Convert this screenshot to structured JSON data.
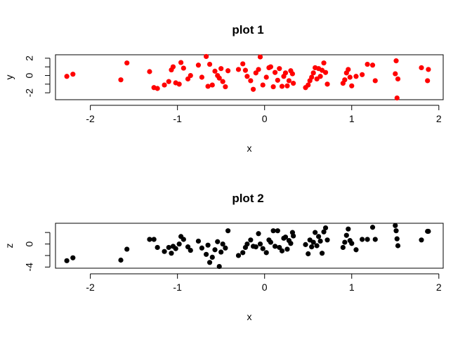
{
  "chart_data": [
    {
      "type": "scatter",
      "title": "plot 1",
      "xlabel": "x",
      "ylabel": "y",
      "xlim": [
        -2.4,
        2.05
      ],
      "ylim": [
        -2.8,
        2.4
      ],
      "xticks": [
        -2,
        -1,
        0,
        1,
        2
      ],
      "xtick_labels": [
        "-2",
        "-1",
        "0",
        "1",
        "2"
      ],
      "yticks": [
        -2,
        0,
        2
      ],
      "ytick_labels": [
        "-2",
        "0",
        "2"
      ],
      "point_color": "#ff0000",
      "points": [
        [
          -2.27,
          -0.1
        ],
        [
          -2.2,
          0.15
        ],
        [
          -1.65,
          -0.5
        ],
        [
          -1.58,
          1.45
        ],
        [
          -1.32,
          0.45
        ],
        [
          -1.27,
          -1.4
        ],
        [
          -1.23,
          -1.5
        ],
        [
          -1.15,
          -1.1
        ],
        [
          -1.1,
          -0.7
        ],
        [
          -1.07,
          0.65
        ],
        [
          -1.05,
          1.0
        ],
        [
          -1.02,
          -0.85
        ],
        [
          -0.98,
          -1.0
        ],
        [
          -0.96,
          1.5
        ],
        [
          -0.93,
          0.85
        ],
        [
          -0.88,
          -0.4
        ],
        [
          -0.85,
          0.0
        ],
        [
          -0.76,
          1.2
        ],
        [
          -0.72,
          -0.2
        ],
        [
          -0.67,
          2.2
        ],
        [
          -0.65,
          -1.25
        ],
        [
          -0.63,
          1.3
        ],
        [
          -0.6,
          -1.1
        ],
        [
          -0.57,
          0.5
        ],
        [
          -0.54,
          0.0
        ],
        [
          -0.52,
          -0.3
        ],
        [
          -0.5,
          0.8
        ],
        [
          -0.48,
          -0.7
        ],
        [
          -0.45,
          -1.3
        ],
        [
          -0.42,
          0.55
        ],
        [
          -0.3,
          0.7
        ],
        [
          -0.25,
          1.35
        ],
        [
          -0.22,
          0.6
        ],
        [
          -0.2,
          -0.1
        ],
        [
          -0.16,
          -0.6
        ],
        [
          -0.13,
          -1.6
        ],
        [
          -0.1,
          0.3
        ],
        [
          -0.07,
          0.7
        ],
        [
          -0.05,
          2.15
        ],
        [
          -0.02,
          -1.1
        ],
        [
          0.02,
          -0.2
        ],
        [
          0.05,
          0.9
        ],
        [
          0.07,
          1.0
        ],
        [
          0.1,
          -1.3
        ],
        [
          0.12,
          0.35
        ],
        [
          0.15,
          -0.55
        ],
        [
          0.17,
          0.8
        ],
        [
          0.2,
          -1.25
        ],
        [
          0.22,
          -0.1
        ],
        [
          0.24,
          0.3
        ],
        [
          0.26,
          -1.2
        ],
        [
          0.28,
          -0.6
        ],
        [
          0.3,
          0.55
        ],
        [
          0.32,
          0.2
        ],
        [
          0.33,
          -0.9
        ],
        [
          0.47,
          -1.4
        ],
        [
          0.5,
          -1.1
        ],
        [
          0.52,
          -0.6
        ],
        [
          0.54,
          -0.2
        ],
        [
          0.56,
          0.3
        ],
        [
          0.58,
          0.9
        ],
        [
          0.6,
          -0.4
        ],
        [
          0.62,
          0.8
        ],
        [
          0.64,
          -0.1
        ],
        [
          0.66,
          0.6
        ],
        [
          0.68,
          1.45
        ],
        [
          0.7,
          0.35
        ],
        [
          0.72,
          -1.0
        ],
        [
          0.9,
          -0.9
        ],
        [
          0.92,
          -0.5
        ],
        [
          0.94,
          0.3
        ],
        [
          0.96,
          0.7
        ],
        [
          0.98,
          -0.2
        ],
        [
          1.0,
          -1.2
        ],
        [
          1.05,
          -0.1
        ],
        [
          1.12,
          0.1
        ],
        [
          1.18,
          1.3
        ],
        [
          1.24,
          1.2
        ],
        [
          1.27,
          -0.6
        ],
        [
          1.5,
          0.2
        ],
        [
          1.51,
          1.7
        ],
        [
          1.53,
          -0.4
        ],
        [
          1.52,
          -2.6
        ],
        [
          1.8,
          0.9
        ],
        [
          1.87,
          -0.6
        ],
        [
          1.88,
          0.7
        ]
      ]
    },
    {
      "type": "scatter",
      "title": "plot 2",
      "xlabel": "x",
      "ylabel": "z",
      "xlim": [
        -2.4,
        2.05
      ],
      "ylim": [
        -4.2,
        3.6
      ],
      "xticks": [
        -2,
        -1,
        0,
        1,
        2
      ],
      "xtick_labels": [
        "-2",
        "-1",
        "0",
        "1",
        "2"
      ],
      "yticks": [
        -4,
        0
      ],
      "ytick_labels": [
        "-4",
        "0"
      ],
      "point_color": "#000000",
      "points": [
        [
          -2.27,
          -2.9
        ],
        [
          -2.2,
          -2.4
        ],
        [
          -1.65,
          -2.8
        ],
        [
          -1.58,
          -0.9
        ],
        [
          -1.32,
          0.8
        ],
        [
          -1.27,
          0.8
        ],
        [
          -1.23,
          -0.6
        ],
        [
          -1.15,
          -1.3
        ],
        [
          -1.1,
          -0.6
        ],
        [
          -1.07,
          -1.6
        ],
        [
          -1.05,
          -0.4
        ],
        [
          -1.02,
          -0.8
        ],
        [
          -0.98,
          0.0
        ],
        [
          -0.96,
          1.3
        ],
        [
          -0.93,
          0.8
        ],
        [
          -0.88,
          -0.5
        ],
        [
          -0.85,
          -1.1
        ],
        [
          -0.76,
          0.5
        ],
        [
          -0.72,
          -0.7
        ],
        [
          -0.67,
          -1.8
        ],
        [
          -0.65,
          -0.2
        ],
        [
          -0.63,
          -3.2
        ],
        [
          -0.6,
          -2.3
        ],
        [
          -0.57,
          -1.0
        ],
        [
          -0.54,
          0.4
        ],
        [
          -0.52,
          -3.9
        ],
        [
          -0.5,
          -1.4
        ],
        [
          -0.48,
          0.0
        ],
        [
          -0.45,
          -0.7
        ],
        [
          -0.42,
          2.3
        ],
        [
          -0.3,
          -2.0
        ],
        [
          -0.25,
          -1.5
        ],
        [
          -0.22,
          -0.6
        ],
        [
          -0.2,
          0.0
        ],
        [
          -0.16,
          0.7
        ],
        [
          -0.13,
          -0.4
        ],
        [
          -0.1,
          -0.5
        ],
        [
          -0.07,
          1.8
        ],
        [
          -0.05,
          0.0
        ],
        [
          -0.02,
          -0.8
        ],
        [
          0.02,
          -1.5
        ],
        [
          0.05,
          0.7
        ],
        [
          0.07,
          0.3
        ],
        [
          0.1,
          2.3
        ],
        [
          0.12,
          -0.4
        ],
        [
          0.15,
          2.3
        ],
        [
          0.17,
          -0.6
        ],
        [
          0.2,
          -1.2
        ],
        [
          0.22,
          1.0
        ],
        [
          0.24,
          1.2
        ],
        [
          0.26,
          -0.9
        ],
        [
          0.28,
          0.6
        ],
        [
          0.3,
          0.1
        ],
        [
          0.32,
          2.0
        ],
        [
          0.33,
          1.4
        ],
        [
          0.47,
          -0.1
        ],
        [
          0.5,
          -1.7
        ],
        [
          0.52,
          0.7
        ],
        [
          0.54,
          -0.5
        ],
        [
          0.56,
          0.3
        ],
        [
          0.58,
          2.0
        ],
        [
          0.6,
          -0.3
        ],
        [
          0.62,
          1.3
        ],
        [
          0.64,
          0.5
        ],
        [
          0.66,
          -1.6
        ],
        [
          0.68,
          2.1
        ],
        [
          0.7,
          2.8
        ],
        [
          0.72,
          0.7
        ],
        [
          0.9,
          -0.6
        ],
        [
          0.92,
          0.3
        ],
        [
          0.94,
          1.5
        ],
        [
          0.96,
          2.6
        ],
        [
          0.98,
          0.6
        ],
        [
          1.0,
          0.1
        ],
        [
          1.05,
          -1.0
        ],
        [
          1.12,
          0.8
        ],
        [
          1.18,
          0.8
        ],
        [
          1.24,
          2.9
        ],
        [
          1.27,
          0.8
        ],
        [
          1.5,
          3.2
        ],
        [
          1.51,
          2.3
        ],
        [
          1.53,
          -0.3
        ],
        [
          1.52,
          0.9
        ],
        [
          1.8,
          0.7
        ],
        [
          1.87,
          2.2
        ],
        [
          1.88,
          2.2
        ]
      ]
    }
  ]
}
